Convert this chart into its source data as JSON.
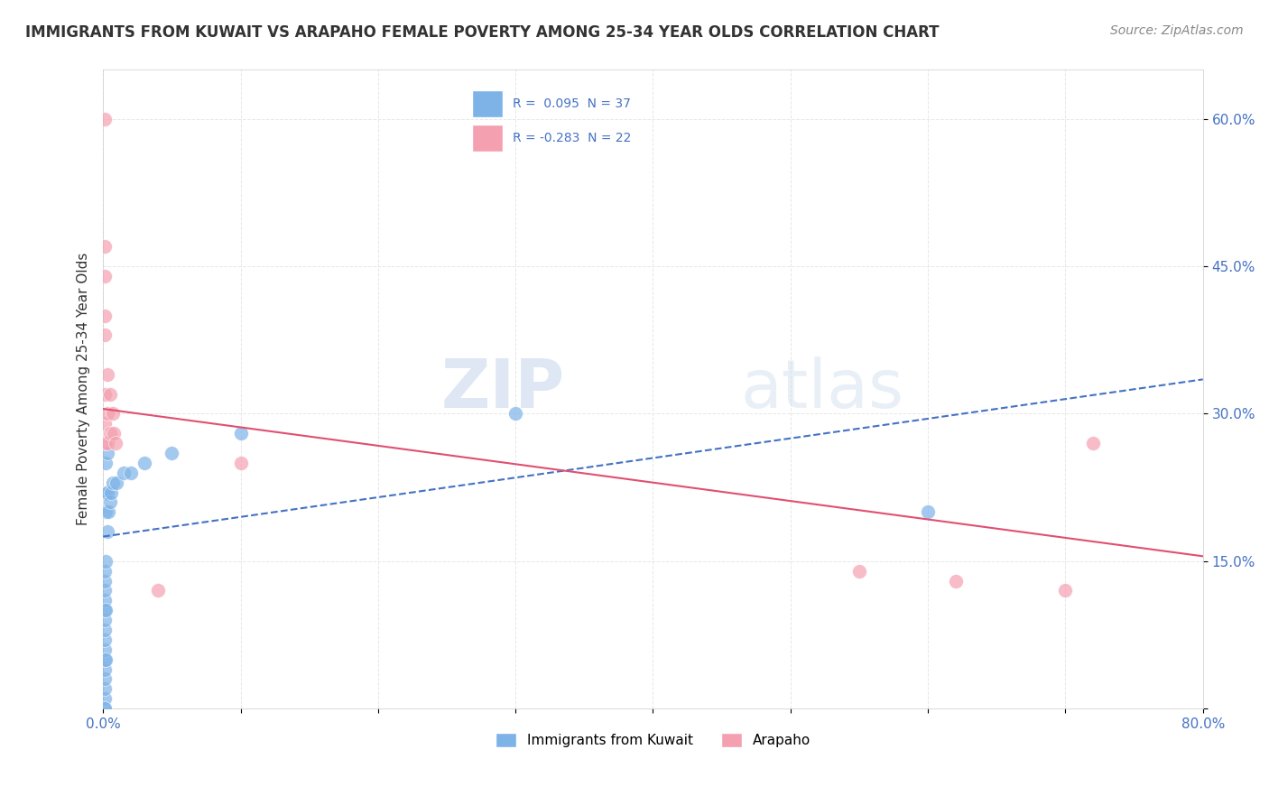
{
  "title": "IMMIGRANTS FROM KUWAIT VS ARAPAHO FEMALE POVERTY AMONG 25-34 YEAR OLDS CORRELATION CHART",
  "source": "Source: ZipAtlas.com",
  "ylabel": "Female Poverty Among 25-34 Year Olds",
  "xlim": [
    0.0,
    0.8
  ],
  "ylim": [
    0.0,
    0.65
  ],
  "ytick_positions": [
    0.0,
    0.15,
    0.3,
    0.45,
    0.6
  ],
  "ytick_labels": [
    "",
    "15.0%",
    "30.0%",
    "45.0%",
    "60.0%"
  ],
  "legend_r1": "R =  0.095  N = 37",
  "legend_r2": "R = -0.283  N = 22",
  "blue_color": "#7EB3E8",
  "pink_color": "#F4A0B0",
  "blue_line_color": "#4472C4",
  "pink_line_color": "#E05070",
  "watermark_zip": "ZIP",
  "watermark_atlas": "atlas",
  "blue_points": [
    [
      0.001,
      0.0
    ],
    [
      0.001,
      0.01
    ],
    [
      0.001,
      0.02
    ],
    [
      0.001,
      0.03
    ],
    [
      0.001,
      0.04
    ],
    [
      0.001,
      0.05
    ],
    [
      0.001,
      0.06
    ],
    [
      0.001,
      0.07
    ],
    [
      0.001,
      0.08
    ],
    [
      0.001,
      0.09
    ],
    [
      0.001,
      0.1
    ],
    [
      0.001,
      0.11
    ],
    [
      0.001,
      0.12
    ],
    [
      0.001,
      0.13
    ],
    [
      0.001,
      0.14
    ],
    [
      0.001,
      0.0
    ],
    [
      0.002,
      0.05
    ],
    [
      0.002,
      0.1
    ],
    [
      0.002,
      0.15
    ],
    [
      0.002,
      0.2
    ],
    [
      0.002,
      0.22
    ],
    [
      0.002,
      0.25
    ],
    [
      0.003,
      0.18
    ],
    [
      0.003,
      0.22
    ],
    [
      0.003,
      0.26
    ],
    [
      0.004,
      0.2
    ],
    [
      0.005,
      0.21
    ],
    [
      0.006,
      0.22
    ],
    [
      0.007,
      0.23
    ],
    [
      0.01,
      0.23
    ],
    [
      0.015,
      0.24
    ],
    [
      0.02,
      0.24
    ],
    [
      0.03,
      0.25
    ],
    [
      0.05,
      0.26
    ],
    [
      0.1,
      0.28
    ],
    [
      0.3,
      0.3
    ],
    [
      0.6,
      0.2
    ]
  ],
  "pink_points": [
    [
      0.001,
      0.6
    ],
    [
      0.001,
      0.47
    ],
    [
      0.001,
      0.44
    ],
    [
      0.001,
      0.4
    ],
    [
      0.001,
      0.38
    ],
    [
      0.001,
      0.32
    ],
    [
      0.001,
      0.29
    ],
    [
      0.001,
      0.27
    ],
    [
      0.003,
      0.34
    ],
    [
      0.003,
      0.3
    ],
    [
      0.003,
      0.27
    ],
    [
      0.005,
      0.32
    ],
    [
      0.005,
      0.28
    ],
    [
      0.007,
      0.3
    ],
    [
      0.008,
      0.28
    ],
    [
      0.009,
      0.27
    ],
    [
      0.04,
      0.12
    ],
    [
      0.1,
      0.25
    ],
    [
      0.55,
      0.14
    ],
    [
      0.62,
      0.13
    ],
    [
      0.7,
      0.12
    ],
    [
      0.72,
      0.27
    ]
  ],
  "background_color": "#FFFFFF",
  "grid_color": "#E0E0E0",
  "blue_line_y_start": 0.175,
  "blue_line_y_end": 0.335,
  "pink_line_y_start": 0.305,
  "pink_line_y_end": 0.155
}
